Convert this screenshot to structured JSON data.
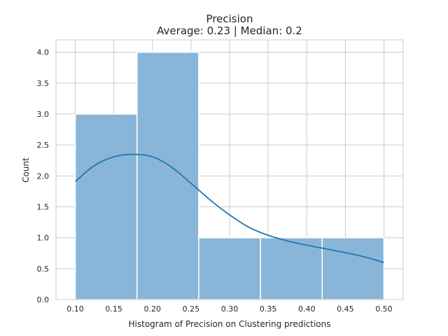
{
  "chart_data": {
    "type": "bar",
    "title": "Precision",
    "subtitle": "Average: 0.23 | Median: 0.2",
    "xlabel": "Histogram of Precision on Clustering predictions",
    "ylabel": "Count",
    "xlim": [
      0.075,
      0.525
    ],
    "ylim": [
      0,
      4.2
    ],
    "grid": true,
    "x_ticks": [
      0.1,
      0.15,
      0.2,
      0.25,
      0.3,
      0.35,
      0.4,
      0.45,
      0.5
    ],
    "x_tick_labels": [
      "0.10",
      "0.15",
      "0.20",
      "0.25",
      "0.30",
      "0.35",
      "0.40",
      "0.45",
      "0.50"
    ],
    "y_ticks": [
      0,
      0.5,
      1.0,
      1.5,
      2.0,
      2.5,
      3.0,
      3.5,
      4.0
    ],
    "y_tick_labels": [
      "0.0",
      "0.5",
      "1.0",
      "1.5",
      "2.0",
      "2.5",
      "3.0",
      "3.5",
      "4.0"
    ],
    "bins": [
      {
        "start": 0.1,
        "end": 0.18,
        "count": 3
      },
      {
        "start": 0.18,
        "end": 0.26,
        "count": 4
      },
      {
        "start": 0.26,
        "end": 0.34,
        "count": 1
      },
      {
        "start": 0.34,
        "end": 0.42,
        "count": 1
      },
      {
        "start": 0.42,
        "end": 0.5,
        "count": 1
      }
    ],
    "kde": {
      "x": [
        0.1,
        0.125,
        0.15,
        0.175,
        0.2,
        0.225,
        0.25,
        0.275,
        0.3,
        0.325,
        0.35,
        0.375,
        0.4,
        0.425,
        0.45,
        0.475,
        0.5
      ],
      "y": [
        1.91,
        2.17,
        2.31,
        2.35,
        2.31,
        2.14,
        1.88,
        1.61,
        1.37,
        1.17,
        1.04,
        0.95,
        0.88,
        0.82,
        0.76,
        0.69,
        0.6
      ]
    },
    "colors": {
      "bar_fill": "#89b6d8",
      "bar_edge": "#ffffff",
      "kde_line": "#1f77b4",
      "grid": "#cccccc",
      "text": "#262626"
    }
  }
}
